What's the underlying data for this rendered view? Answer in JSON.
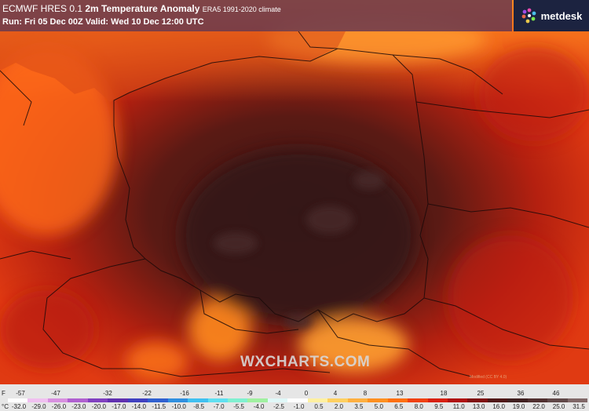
{
  "header": {
    "model": "ECMWF HRES 0.1",
    "variable": "2m Temperature Anomaly",
    "climate": "ERA5 1991-2020 climate",
    "run": "Run: Fri 05 Dec 00Z Valid: Wed 10 Dec 12:00 UTC"
  },
  "brand": {
    "name": "metdesk"
  },
  "watermark": "WXCHARTS.COM",
  "credit": "Modified (CC BY 4.0)",
  "legend": {
    "f_unit": "F",
    "f_ticks": [
      "-57",
      "-47",
      "-32",
      "-22",
      "-16",
      "-11",
      "-9",
      "-4",
      "0",
      "4",
      "8",
      "13",
      "18",
      "25",
      "36",
      "46"
    ],
    "c_unit": "°C",
    "c_ticks": [
      "-32.0",
      "-29.0",
      "-26.0",
      "-23.0",
      "-20.0",
      "-17.0",
      "-14.0",
      "-11.5",
      "-10.0",
      "-8.5",
      "-7.0",
      "-5.5",
      "-4.0",
      "-2.5",
      "-1.0",
      "0.5",
      "2.0",
      "3.5",
      "5.0",
      "6.5",
      "8.0",
      "9.5",
      "11.0",
      "13.0",
      "16.0",
      "19.0",
      "22.0",
      "25.0",
      "31.5"
    ],
    "colors": [
      "#ffffff",
      "#f0c0f0",
      "#d890e0",
      "#b060d0",
      "#8040c0",
      "#6030b0",
      "#4040c0",
      "#3060d0",
      "#3090e0",
      "#40c0f0",
      "#60e0f0",
      "#80f0d0",
      "#a0f0a0",
      "#e0f8f8",
      "#ffffff",
      "#fff0a0",
      "#ffd060",
      "#ffb040",
      "#ff9020",
      "#ff7010",
      "#f04010",
      "#d82010",
      "#b01010",
      "#801010",
      "#501818",
      "#402020",
      "#503030",
      "#604848",
      "#806868"
    ]
  }
}
